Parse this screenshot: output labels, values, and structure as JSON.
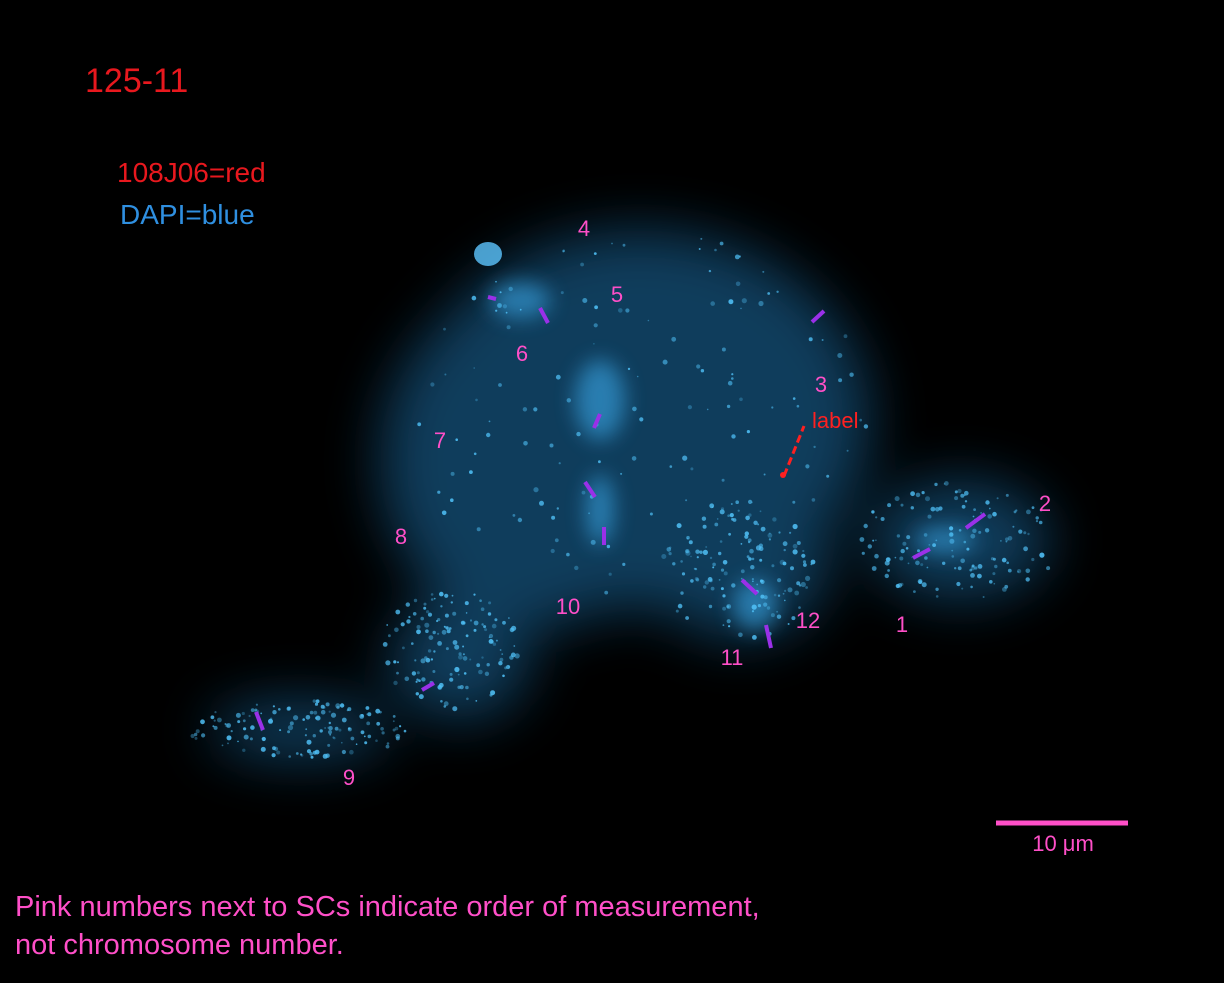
{
  "header": {
    "title": "125-11",
    "legend": [
      "108J06=red",
      "DAPI=blue"
    ]
  },
  "labels": [
    "4",
    "5",
    "6",
    "3",
    "7",
    "8",
    "2",
    "10",
    "12",
    "1",
    "11",
    "9"
  ],
  "probe_label": "label",
  "scale_bar": "10 μm",
  "caption": [
    "Pink numbers next to SCs indicate order of measurement,",
    "not chromosome number."
  ]
}
